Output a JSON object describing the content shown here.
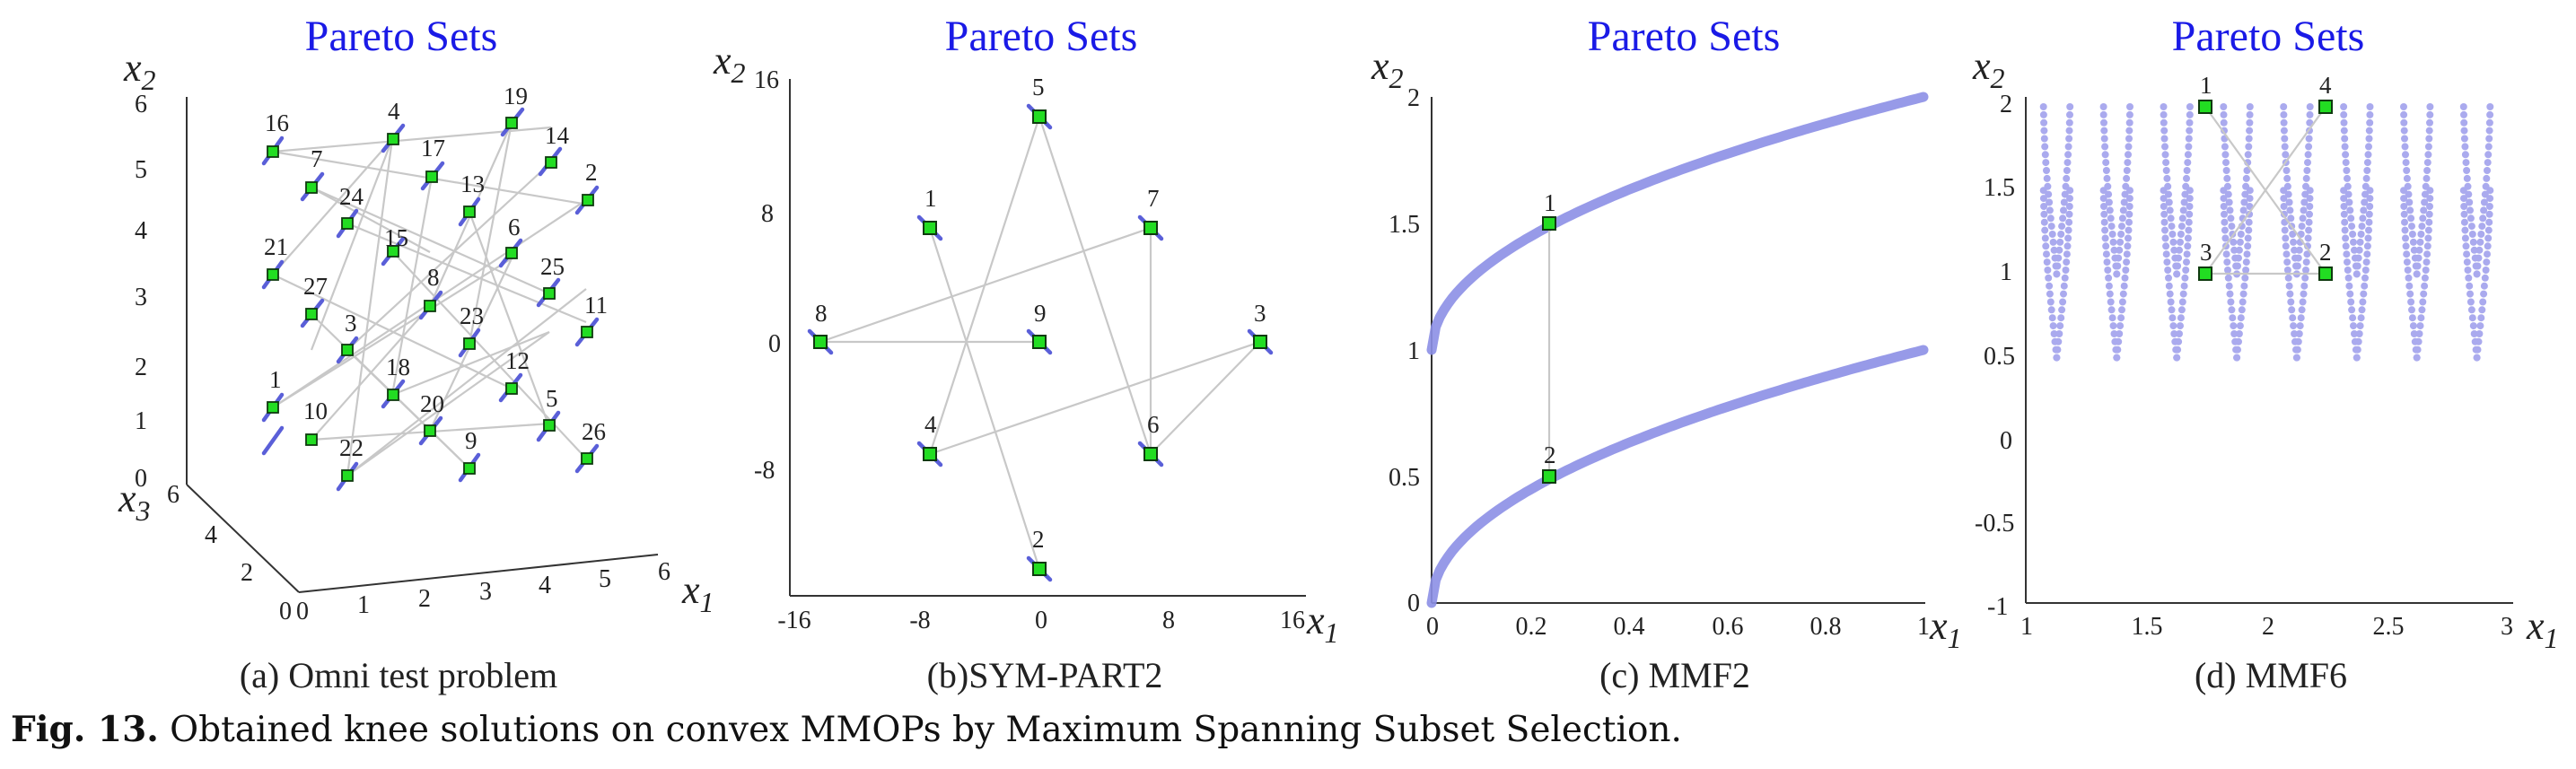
{
  "panels": [
    {
      "title": "Pareto Sets",
      "subcaption": "(a) Omni test problem",
      "x1_label": "x",
      "x1_sub": "1",
      "x2_label": "x",
      "x2_sub": "2",
      "x3_label": "x",
      "x3_sub": "3",
      "x1_ticks": [
        "0",
        "1",
        "2",
        "3",
        "4",
        "5",
        "6"
      ],
      "x2_ticks": [
        "0",
        "1",
        "2",
        "3",
        "4",
        "5",
        "6"
      ],
      "x3_ticks": [
        "0",
        "2",
        "4",
        "6"
      ],
      "points": [
        "1",
        "2",
        "3",
        "5",
        "6",
        "7",
        "8",
        "9",
        "10",
        "11",
        "12",
        "13",
        "14",
        "15",
        "16",
        "17",
        "18",
        "19",
        "20",
        "21",
        "22",
        "23",
        "24",
        "25",
        "26",
        "27",
        "4"
      ]
    },
    {
      "title": "Pareto Sets",
      "subcaption": "(b)SYM-PART2",
      "x1_label": "x",
      "x1_sub": "1",
      "x2_label": "x",
      "x2_sub": "2",
      "x1_ticks": [
        "-16",
        "-8",
        "0",
        "8",
        "16"
      ],
      "x2_ticks": [
        "16",
        "8",
        "0",
        "-8"
      ],
      "points": [
        "1",
        "2",
        "3",
        "4",
        "5",
        "6",
        "7",
        "8",
        "9"
      ]
    },
    {
      "title": "Pareto Sets",
      "subcaption": "(c) MMF2",
      "x1_label": "x",
      "x1_sub": "1",
      "x2_label": "x",
      "x2_sub": "2",
      "x1_ticks": [
        "0",
        "0.2",
        "0.4",
        "0.6",
        "0.8",
        "1"
      ],
      "x2_ticks": [
        "2",
        "1.5",
        "1",
        "0.5",
        "0"
      ],
      "points": [
        "1",
        "2"
      ]
    },
    {
      "title": "Pareto Sets",
      "subcaption": "(d) MMF6",
      "x1_label": "x",
      "x1_sub": "1",
      "x2_label": "x",
      "x2_sub": "2",
      "x1_ticks": [
        "1",
        "1.5",
        "2",
        "2.5",
        "3"
      ],
      "x2_ticks": [
        "2",
        "1.5",
        "1",
        "0.5",
        "0",
        "-0.5",
        "-1"
      ],
      "points": [
        "1",
        "2",
        "3",
        "4"
      ]
    }
  ],
  "caption": {
    "figure_number": "Fig. 13.",
    "text": " Obtained knee solutions on convex MMOPs by Maximum Spanning Subset Selection."
  },
  "colors": {
    "title": "#1a1ae6",
    "marker_fill": "#22dd22",
    "segment": "#5a5fd8",
    "connection": "#c8c8c8",
    "curve": "#8c8fe6"
  }
}
